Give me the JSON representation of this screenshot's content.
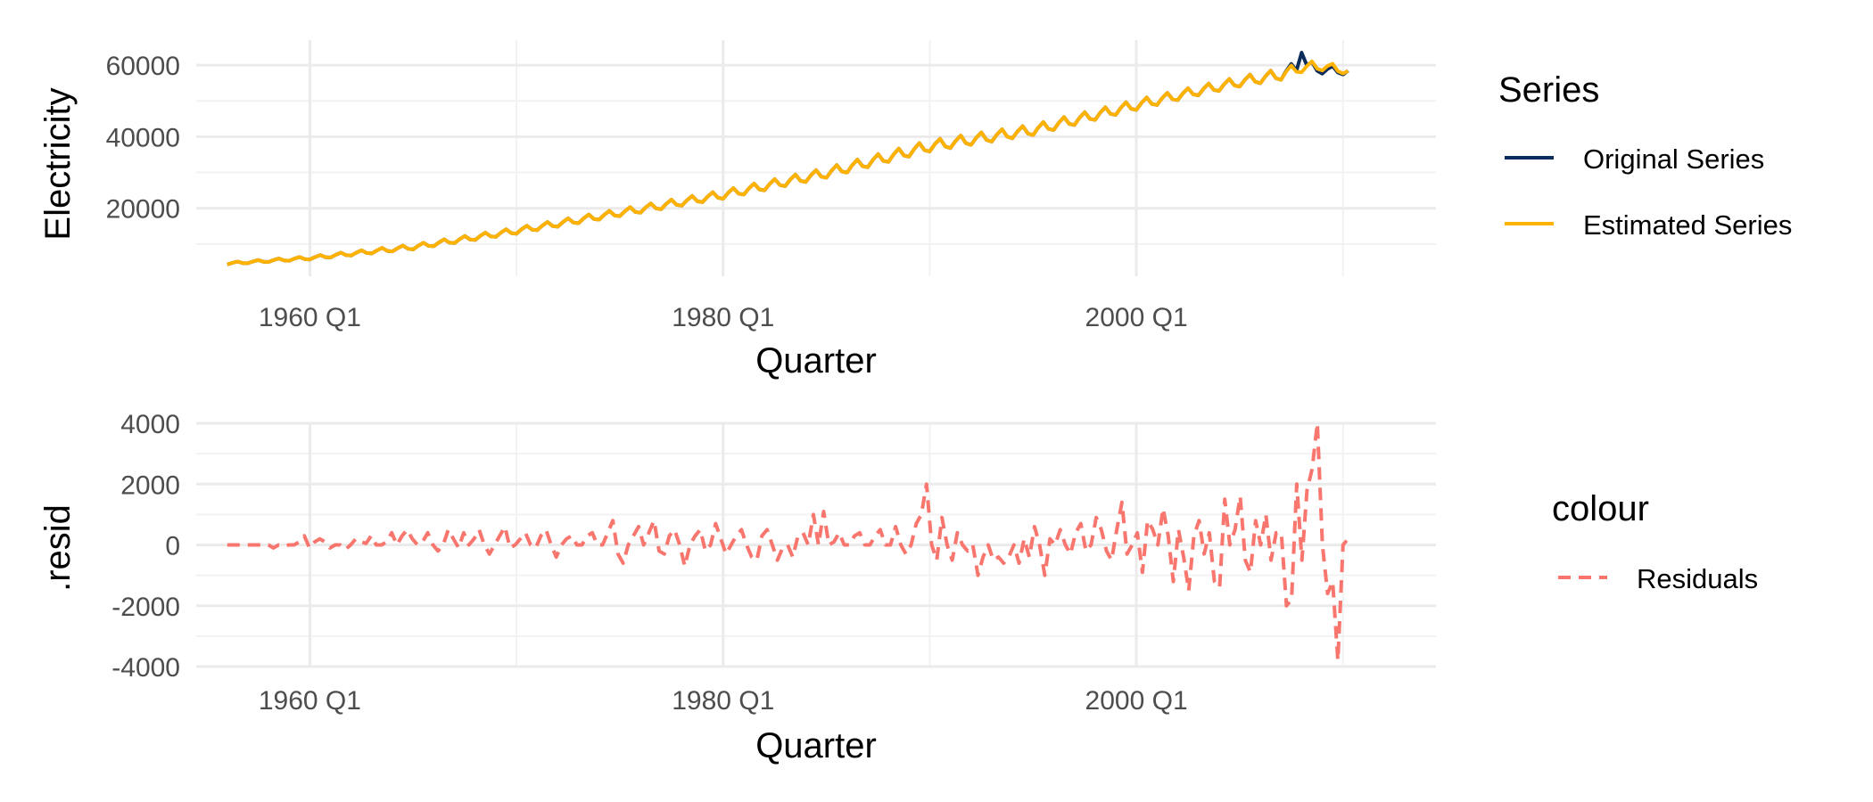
{
  "chart_data": [
    {
      "type": "line",
      "title": "",
      "xlabel": "Quarter",
      "ylabel": "Electricity",
      "x_start": "1956 Q1",
      "x_end": "2010 Q2",
      "xticks": [
        "1960 Q1",
        "1980 Q1",
        "2000 Q1"
      ],
      "xtick_years": [
        1960,
        1980,
        2000
      ],
      "xlim_years": [
        1954.5,
        2014.5
      ],
      "yticks": [
        20000,
        40000,
        60000
      ],
      "ylim": [
        1000,
        67000
      ],
      "grid": true,
      "legend": {
        "title": "Series",
        "position": "right",
        "entries": [
          {
            "label": "Original Series",
            "color": "#0b2d5c",
            "line": "solid"
          },
          {
            "label": "Estimated Series",
            "color": "#ffb300",
            "line": "solid"
          }
        ]
      },
      "series": [
        {
          "name": "Original Series",
          "color": "#0b2d5c",
          "anchor_years": [
            1956,
            1960,
            1965,
            1970,
            1975,
            1980,
            1985,
            1990,
            1995,
            2000,
            2003,
            2005,
            2007,
            2008,
            2009,
            2010.25
          ],
          "anchor_trend": [
            4500,
            6000,
            9000,
            13500,
            18500,
            23500,
            29500,
            37000,
            41500,
            48500,
            52500,
            55000,
            57000,
            59500,
            58500,
            58000
          ],
          "seasonal_amplitude": [
            400,
            600,
            900,
            1100,
            1300,
            1500,
            1800,
            2000,
            1900,
            1800,
            1700,
            1800,
            2000,
            2200,
            1600,
            1200
          ],
          "peak_events": [
            {
              "year": 2008.0,
              "value": 63500
            }
          ]
        },
        {
          "name": "Estimated Series",
          "color": "#ffb300",
          "anchor_years": [
            1956,
            1960,
            1965,
            1970,
            1975,
            1980,
            1985,
            1990,
            1995,
            2000,
            2003,
            2005,
            2007,
            2008,
            2009,
            2010.25
          ],
          "anchor_trend": [
            4500,
            6000,
            9000,
            13500,
            18500,
            23500,
            29500,
            37000,
            41500,
            48500,
            52500,
            55000,
            57000,
            59000,
            59500,
            58000
          ],
          "seasonal_amplitude": [
            400,
            600,
            900,
            1100,
            1300,
            1500,
            1800,
            2000,
            1900,
            1800,
            1700,
            1800,
            2000,
            1800,
            1800,
            1000
          ]
        }
      ]
    },
    {
      "type": "line",
      "title": "",
      "xlabel": "Quarter",
      "ylabel": ".resid",
      "x_start": "1956 Q1",
      "x_end": "2010 Q2",
      "xticks": [
        "1960 Q1",
        "1980 Q1",
        "2000 Q1"
      ],
      "xtick_years": [
        1960,
        1980,
        2000
      ],
      "xlim_years": [
        1954.5,
        2014.5
      ],
      "yticks": [
        -4000,
        -2000,
        0,
        2000,
        4000
      ],
      "ylim": [
        -4000,
        4000
      ],
      "grid": true,
      "legend": {
        "title": "colour",
        "position": "right",
        "entries": [
          {
            "label": "Residuals",
            "color": "#f8766d",
            "line": "dashed"
          }
        ]
      },
      "series": [
        {
          "name": "Residuals",
          "color": "#f8766d",
          "line": "dashed",
          "values": [
            0,
            0,
            0,
            0,
            0,
            0,
            0,
            0,
            0,
            -100,
            0,
            -50,
            0,
            0,
            100,
            300,
            -100,
            100,
            200,
            100,
            -100,
            0,
            0,
            -150,
            0,
            200,
            100,
            50,
            300,
            0,
            0,
            100,
            400,
            0,
            300,
            500,
            200,
            0,
            100,
            400,
            0,
            -200,
            0,
            500,
            200,
            -100,
            400,
            0,
            200,
            500,
            0,
            -300,
            0,
            300,
            600,
            -100,
            0,
            200,
            400,
            0,
            -100,
            300,
            500,
            0,
            -400,
            0,
            200,
            300,
            0,
            0,
            300,
            400,
            0,
            0,
            400,
            800,
            -300,
            -600,
            0,
            300,
            600,
            0,
            400,
            800,
            -200,
            -300,
            300,
            500,
            0,
            -700,
            0,
            300,
            500,
            -200,
            0,
            700,
            200,
            -300,
            0,
            300,
            500,
            0,
            -400,
            -500,
            300,
            500,
            0,
            -500,
            -100,
            0,
            -400,
            300,
            400,
            0,
            1000,
            0,
            1100,
            0,
            100,
            400,
            0,
            0,
            300,
            400,
            0,
            0,
            300,
            500,
            0,
            0,
            600,
            0,
            -300,
            0,
            700,
            1000,
            2000,
            0,
            -500,
            900,
            0,
            -500,
            400,
            0,
            -200,
            0,
            -1000,
            -400,
            0,
            -500,
            -400,
            -600,
            -400,
            0,
            -600,
            200,
            -400,
            600,
            0,
            -1000,
            200,
            0,
            500,
            0,
            -300,
            400,
            700,
            -200,
            0,
            900,
            500,
            -200,
            -500,
            500,
            1400,
            -300,
            0,
            400,
            -900,
            800,
            500,
            0,
            1200,
            300,
            -1200,
            500,
            -400,
            -1500,
            300,
            800,
            -300,
            400,
            -1200,
            -1400,
            1500,
            0,
            500,
            1600,
            -500,
            -900,
            800,
            0,
            1000,
            -500,
            400,
            400,
            -2000,
            -1800,
            2000,
            -500,
            1800,
            2500,
            4000,
            0,
            -1600,
            -1200,
            -3800,
            0,
            200
          ]
        }
      ]
    }
  ]
}
